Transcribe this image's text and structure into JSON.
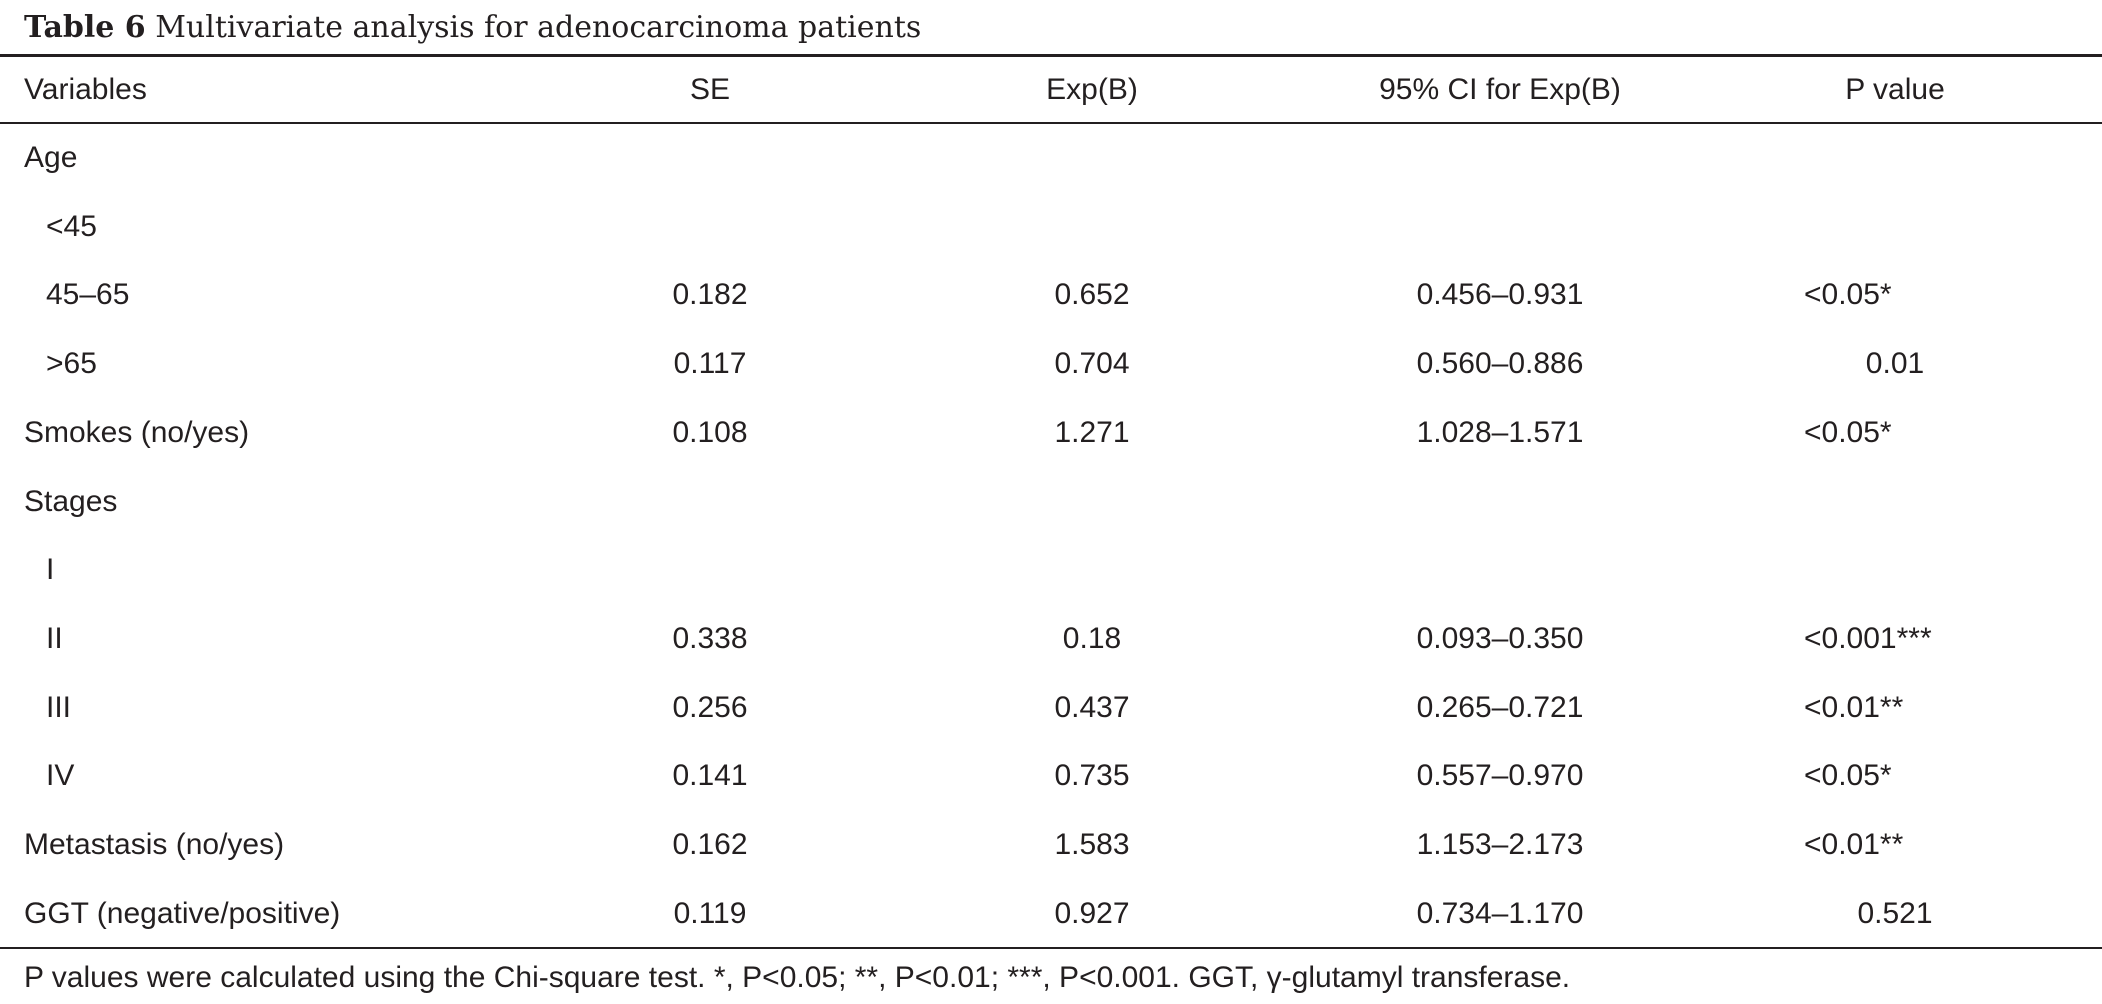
{
  "caption": {
    "label": "Table 6",
    "text": "Multivariate analysis for adenocarcinoma patients"
  },
  "headers": {
    "variables": "Variables",
    "se": "SE",
    "exp": "Exp(B)",
    "ci": "95% CI for Exp(B)",
    "p": "P value"
  },
  "rows": [
    {
      "variable": "Age",
      "se": "",
      "exp": "",
      "ci": "",
      "p": ""
    },
    {
      "variable": "<45",
      "se": "",
      "exp": "",
      "ci": "",
      "p": ""
    },
    {
      "variable": "45–65",
      "se": "0.182",
      "exp": "0.652",
      "ci": "0.456–0.931",
      "p": "<0.05*"
    },
    {
      "variable": ">65",
      "se": "0.117",
      "exp": "0.704",
      "ci": "0.560–0.886",
      "p": "0.01"
    },
    {
      "variable": "Smokes (no/yes)",
      "se": "0.108",
      "exp": "1.271",
      "ci": "1.028–1.571",
      "p": "<0.05*"
    },
    {
      "variable": "Stages",
      "se": "",
      "exp": "",
      "ci": "",
      "p": ""
    },
    {
      "variable": "I",
      "se": "",
      "exp": "",
      "ci": "",
      "p": ""
    },
    {
      "variable": "II",
      "se": "0.338",
      "exp": "0.18",
      "ci": "0.093–0.350",
      "p": "<0.001***"
    },
    {
      "variable": "III",
      "se": "0.256",
      "exp": "0.437",
      "ci": "0.265–0.721",
      "p": "<0.01**"
    },
    {
      "variable": "IV",
      "se": "0.141",
      "exp": "0.735",
      "ci": "0.557–0.970",
      "p": "<0.05*"
    },
    {
      "variable": "Metastasis (no/yes)",
      "se": "0.162",
      "exp": "1.583",
      "ci": "1.153–2.173",
      "p": "<0.01**"
    },
    {
      "variable": "GGT (negative/positive)",
      "se": "0.119",
      "exp": "0.927",
      "ci": "0.734–1.170",
      "p": "0.521"
    }
  ],
  "footnote": "P values were calculated using the Chi-square test. *, P<0.05; **, P<0.01; ***, P<0.001. GGT, γ-glutamyl transferase."
}
